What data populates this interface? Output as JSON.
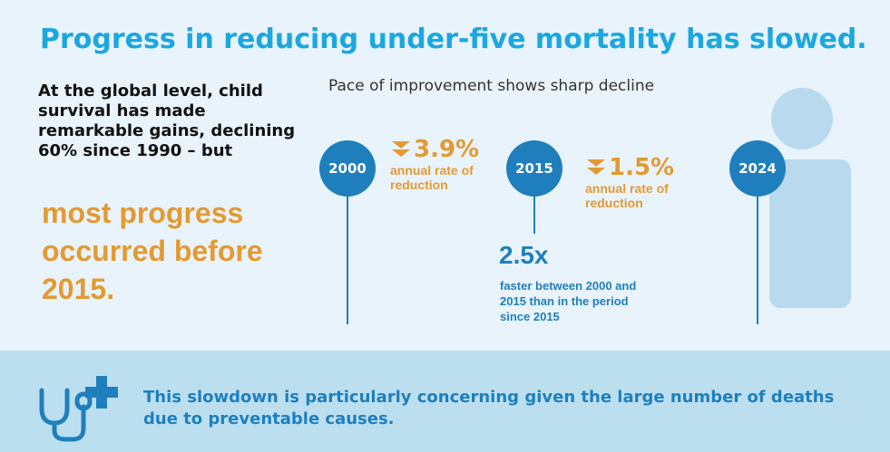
{
  "title": "Progress in reducing under-five mortality has slowed.",
  "intro": "At the global level, child survival has made remarkable gains, declining 60% since 1990 – but",
  "highlight": "most progress occurred before 2015.",
  "subtitle": "Pace of improvement shows sharp decline",
  "timeline": {
    "years": [
      "2000",
      "2015",
      "2024"
    ],
    "rates": [
      {
        "value": "3.9%",
        "label": "annual rate of reduction"
      },
      {
        "value": "1.5%",
        "label": "annual rate of reduction"
      }
    ],
    "multiplier": "2.5x",
    "multiplier_desc": "faster between 2000 and 2015 than in the period since 2015"
  },
  "icons": {
    "rate_arrow": "double-chevron-down-icon",
    "person": "person-silhouette-icon",
    "footer": "stethoscope-plus-icon"
  },
  "colors": {
    "title": "#1ba7e0",
    "accent_orange": "#e39a33",
    "timeline_blue": "#1f7fbd",
    "background": "#e8f3fb",
    "footer_bg": "#bcdff0",
    "person": "#b9d9ee"
  },
  "footer": {
    "text": "This slowdown is particularly concerning given the large number of deaths due to preventable causes."
  }
}
